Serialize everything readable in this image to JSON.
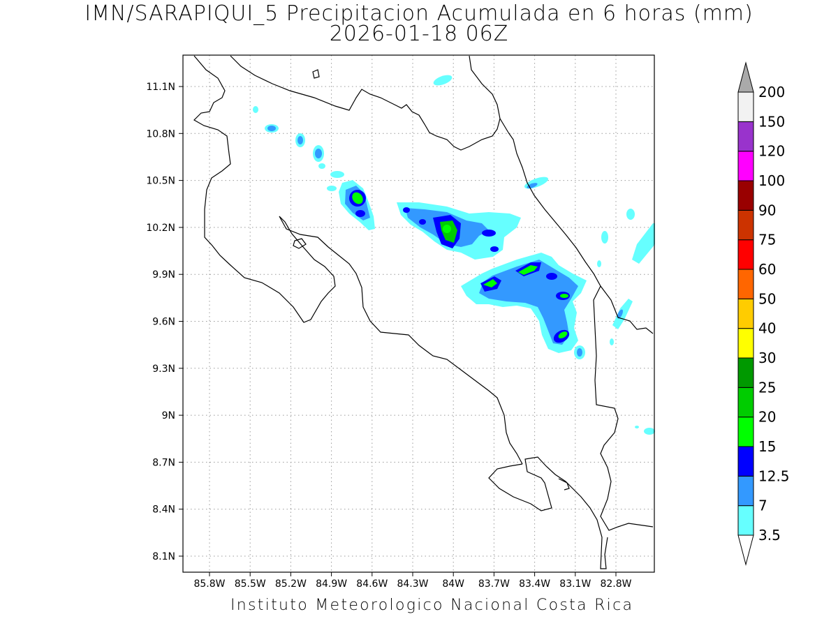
{
  "title": {
    "line1": "IMN/SARAPIQUI_5 Precipitacion Acumulada en 6 horas (mm)",
    "line2": "2026-01-18 06Z"
  },
  "footer": "Instituto Meteorologico Nacional Costa Rica",
  "map": {
    "lon_range": [
      -85.96,
      -82.68
    ],
    "lat_range": [
      8.0,
      11.3
    ],
    "lon_ticks": [
      "85.8W",
      "85.5W",
      "85.2W",
      "84.9W",
      "84.6W",
      "84.3W",
      "84W",
      "83.7W",
      "83.4W",
      "83.1W",
      "82.8W"
    ],
    "lat_ticks": [
      "11.1N",
      "10.8N",
      "10.5N",
      "10.2N",
      "9.9N",
      "9.6N",
      "9.3N",
      "9N",
      "8.7N",
      "8.4N",
      "8.1N"
    ],
    "grid": "dotted"
  },
  "colorbar": {
    "units": "mm",
    "levels": [
      "3.5",
      "7",
      "12.5",
      "15",
      "20",
      "25",
      "30",
      "40",
      "50",
      "60",
      "75",
      "90",
      "100",
      "120",
      "150",
      "200"
    ],
    "colors": [
      "#66ffff",
      "#3399ff",
      "#0000ff",
      "#00ff00",
      "#00cc00",
      "#009900",
      "#ffff00",
      "#ffcc00",
      "#ff6600",
      "#ff0000",
      "#cc3300",
      "#990000",
      "#ff00ff",
      "#9933cc",
      "#f2f2f2",
      "#aaaaaa"
    ]
  }
}
